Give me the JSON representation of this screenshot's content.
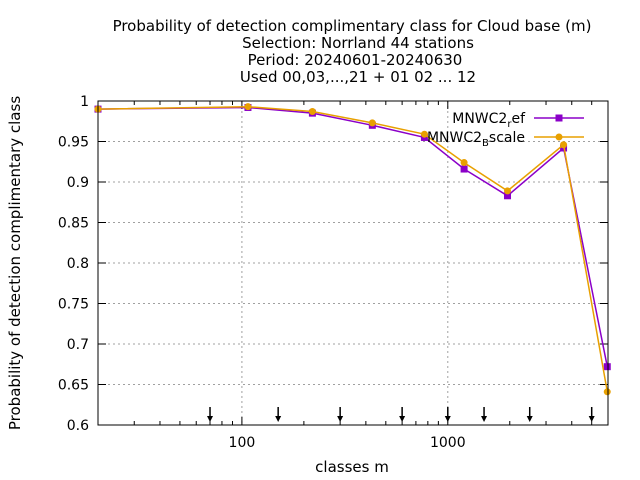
{
  "chart_data": {
    "type": "line",
    "title_lines": [
      "Probability of detection complimentary class  for Cloud base (m)",
      "Selection: Norrland      44 stations",
      "Period: 20240601-20240630",
      "Used 00,03,...,21 + 01 02 ... 12"
    ],
    "xlabel": "classes m",
    "ylabel": "Probability of detection complimentary class",
    "x_scale": "log",
    "xlim": [
      20,
      6000
    ],
    "ylim": [
      0.6,
      1.0
    ],
    "x_ticks": [
      100,
      1000
    ],
    "x_tick_labels": [
      "100",
      "1000"
    ],
    "y_ticks": [
      0.6,
      0.65,
      0.7,
      0.75,
      0.8,
      0.85,
      0.9,
      0.95,
      1.0
    ],
    "y_tick_labels": [
      "0.6",
      "0.65",
      "0.7",
      "0.75",
      "0.8",
      "0.85",
      "0.9",
      "0.95",
      "1"
    ],
    "grid": true,
    "legend_position": "top-right",
    "arrow_markers_x": [
      70,
      150,
      300,
      600,
      1000,
      1500,
      2500,
      5000
    ],
    "series": [
      {
        "name": "MNWC2_ref",
        "legend_base": "MNWC2",
        "legend_sub": "r",
        "legend_rest": "ef",
        "color": "#8b00c8",
        "marker": "filled-square",
        "x": [
          20,
          107,
          220,
          430,
          770,
          1200,
          1950,
          3650,
          5950
        ],
        "y": [
          0.99,
          0.992,
          0.985,
          0.97,
          0.955,
          0.916,
          0.883,
          0.942,
          0.672
        ]
      },
      {
        "name": "MNWC2_Bscale",
        "legend_base": "MNWC2",
        "legend_sub": "B",
        "legend_rest": "scale",
        "color": "#e8a000",
        "marker": "filled-circle",
        "x": [
          20,
          107,
          220,
          430,
          770,
          1200,
          1950,
          3650,
          5950
        ],
        "y": [
          0.99,
          0.993,
          0.987,
          0.973,
          0.959,
          0.924,
          0.889,
          0.946,
          0.641
        ]
      }
    ]
  }
}
